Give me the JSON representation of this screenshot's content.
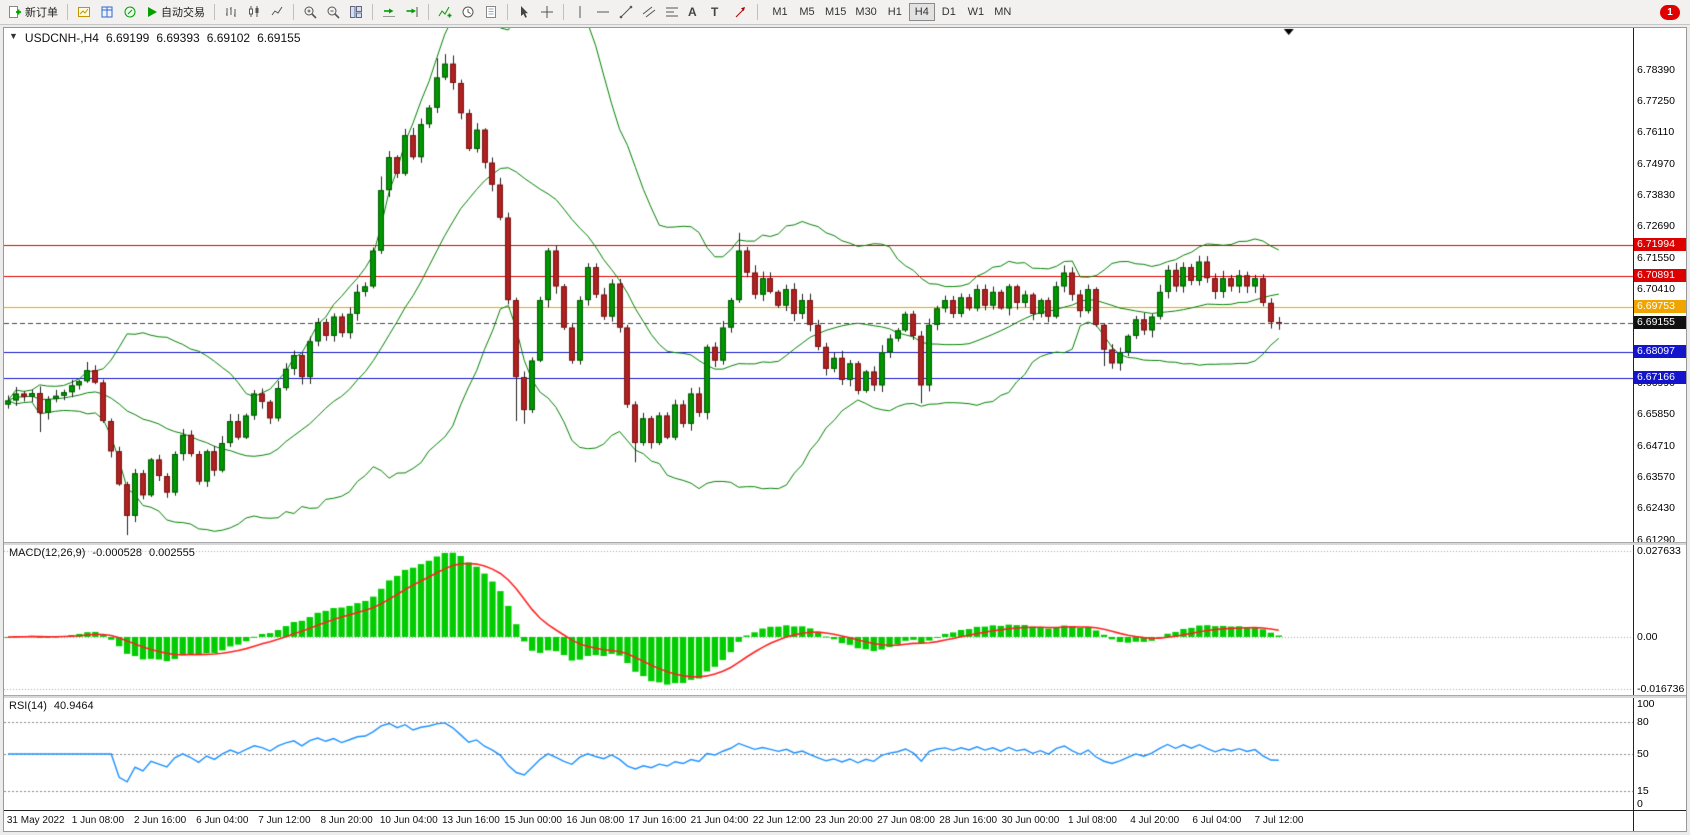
{
  "toolbar": {
    "new_order_label": "新订单",
    "autotrade_label": "自动交易",
    "text_tool_glyph": "A",
    "label_tool_glyph": "T",
    "timeframes": [
      "M1",
      "M5",
      "M15",
      "M30",
      "H1",
      "H4",
      "D1",
      "W1",
      "MN"
    ],
    "active_timeframe": "H4",
    "notification_count": "1"
  },
  "chart": {
    "title": "USDCNH-,H4",
    "ohlc": {
      "open": "6.69199",
      "high": "6.69393",
      "low": "6.69102",
      "close": "6.69155"
    }
  },
  "chart_data": {
    "type": "candlestick",
    "symbol": "USDCNH-",
    "timeframe": "H4",
    "bars": 161,
    "data_end_fraction": 0.785,
    "price_axis": {
      "max": 6.799,
      "min": 6.612,
      "ticks": [
        "6.78390",
        "6.77250",
        "6.76110",
        "6.74970",
        "6.73830",
        "6.72690",
        "6.71550",
        "6.70410",
        "6.69270",
        "6.68130",
        "6.66990",
        "6.65850",
        "6.64710",
        "6.63570",
        "6.62430",
        "6.61290"
      ]
    },
    "time_labels": [
      "31 May 2022",
      "1 Jun 08:00",
      "2 Jun 16:00",
      "6 Jun 04:00",
      "7 Jun 12:00",
      "8 Jun 20:00",
      "10 Jun 04:00",
      "13 Jun 16:00",
      "15 Jun 00:00",
      "16 Jun 08:00",
      "17 Jun 16:00",
      "21 Jun 04:00",
      "22 Jun 12:00",
      "23 Jun 20:00",
      "27 Jun 08:00",
      "28 Jun 16:00",
      "30 Jun 00:00",
      "1 Jul 08:00",
      "4 Jul 20:00",
      "6 Jul 04:00",
      "7 Jul 12:00"
    ],
    "closes": [
      6.6635,
      6.666,
      6.6648,
      6.6662,
      6.659,
      6.664,
      6.6652,
      6.6665,
      6.669,
      6.6705,
      6.6745,
      6.67,
      6.656,
      6.645,
      6.633,
      6.6215,
      6.637,
      6.629,
      6.642,
      6.636,
      6.63,
      6.644,
      6.651,
      6.644,
      6.634,
      6.645,
      6.638,
      6.648,
      6.656,
      6.65,
      6.658,
      6.666,
      6.663,
      6.657,
      6.668,
      6.675,
      6.68,
      6.672,
      6.685,
      6.692,
      6.687,
      6.694,
      6.688,
      6.695,
      6.703,
      6.705,
      6.718,
      6.74,
      6.752,
      6.746,
      6.76,
      6.752,
      6.764,
      6.77,
      6.781,
      6.786,
      6.779,
      6.768,
      6.755,
      6.762,
      6.75,
      6.742,
      6.73,
      6.7,
      6.672,
      6.66,
      6.678,
      6.7,
      6.718,
      6.705,
      6.69,
      6.678,
      6.7,
      6.712,
      6.702,
      6.694,
      6.706,
      6.69,
      6.662,
      6.648,
      6.657,
      6.648,
      6.658,
      6.65,
      6.662,
      6.655,
      6.666,
      6.659,
      6.683,
      6.678,
      6.69,
      6.7,
      6.718,
      6.71,
      6.702,
      6.708,
      6.703,
      6.698,
      6.704,
      6.695,
      6.7,
      6.691,
      6.683,
      6.675,
      6.679,
      6.671,
      6.677,
      6.667,
      6.674,
      6.669,
      6.681,
      6.686,
      6.689,
      6.695,
      6.687,
      6.669,
      6.691,
      6.697,
      6.7,
      6.695,
      6.701,
      6.697,
      6.704,
      6.698,
      6.703,
      6.697,
      6.705,
      6.699,
      6.702,
      6.695,
      6.7,
      6.694,
      6.705,
      6.71,
      6.702,
      6.696,
      6.704,
      6.691,
      6.682,
      6.677,
      6.681,
      6.687,
      6.693,
      6.689,
      6.694,
      6.703,
      6.711,
      6.705,
      6.712,
      6.707,
      6.714,
      6.708,
      6.703,
      6.708,
      6.705,
      6.709,
      6.705,
      6.708,
      6.699,
      6.692,
      6.6916
    ],
    "wick_overrides": {
      "4": [
        null,
        6.652
      ],
      "10": [
        6.6775,
        null
      ],
      "15": [
        null,
        6.6145
      ],
      "47": [
        6.745,
        null
      ],
      "54": [
        6.788,
        null
      ],
      "55": [
        6.7895,
        null
      ],
      "56": [
        6.789,
        null
      ],
      "64": [
        null,
        6.656
      ],
      "65": [
        null,
        6.655
      ],
      "79": [
        null,
        6.641
      ],
      "92": [
        6.7245,
        null
      ],
      "115": [
        null,
        6.6625
      ],
      "138": [
        null,
        6.676
      ]
    },
    "levels": [
      {
        "label": "6.71994",
        "value": 6.71994,
        "color": "#dd0000"
      },
      {
        "label": "6.70891",
        "value": 6.70891,
        "color": "#dd0000"
      },
      {
        "label": "6.69753",
        "value": 6.69753,
        "color": "#efa400"
      },
      {
        "label": "6.68097",
        "value": 6.68097,
        "color": "#1414cc"
      },
      {
        "label": "6.67166",
        "value": 6.67166,
        "color": "#1414cc"
      }
    ],
    "current_price": {
      "label": "6.69155",
      "value": 6.69155,
      "tag_color": "#111111"
    },
    "colors": {
      "up": "#009900",
      "down": "#b22222",
      "up_border": "#005500",
      "down_border": "#771111",
      "wick": "#222222",
      "bollinger": "#008000",
      "macd_histogram": "#00cc00",
      "macd_signal": "#ff2222",
      "rsi_line": "#1e90ff"
    },
    "indicators": {
      "macd": {
        "label": "MACD(12,26,9)",
        "value_main": "-0.000528",
        "value_signal": "0.002555",
        "scale_max": 0.027633,
        "scale_min": -0.016736,
        "scale_labels": [
          "0.027633",
          "0.00",
          "-0.016736"
        ]
      },
      "rsi": {
        "label": "RSI(14)",
        "value": "40.9464",
        "levels": [
          {
            "value": 100,
            "label": "100",
            "dashed": false
          },
          {
            "value": 80,
            "label": "80",
            "dashed": true
          },
          {
            "value": 50,
            "label": "50",
            "dashed": true
          },
          {
            "value": 15,
            "label": "15",
            "dashed": true
          },
          {
            "value": 0,
            "label": "0",
            "dashed": false
          }
        ]
      }
    }
  }
}
